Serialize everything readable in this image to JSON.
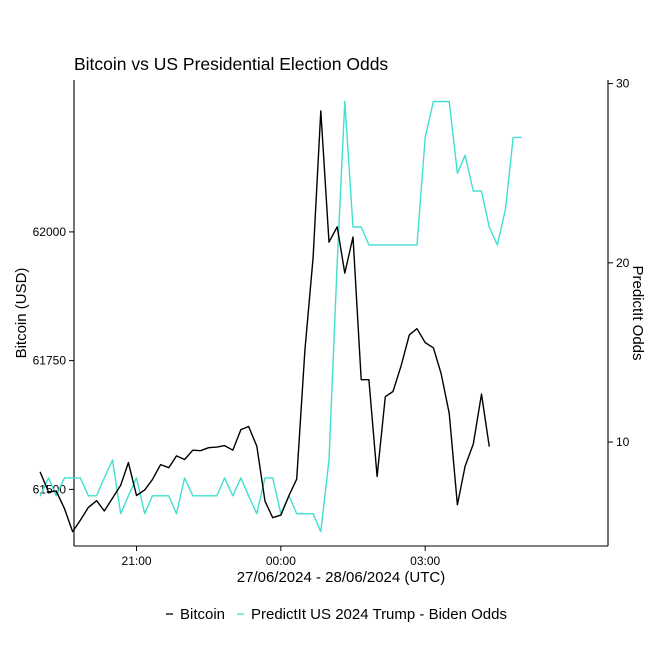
{
  "chart_data": {
    "type": "line",
    "title": "Bitcoin vs US Presidential Election Odds",
    "xlabel": "27/06/2024 - 28/06/2024 (UTC)",
    "ylabel_left": "Bitcoin (USD)",
    "ylabel_right": "PredictIt Odds",
    "x_range_hours": [
      -4.3,
      6.8
    ],
    "x_ticks": [
      {
        "hour": -3,
        "label": "21:00"
      },
      {
        "hour": 0,
        "label": "00:00"
      },
      {
        "hour": 3,
        "label": "03:00"
      }
    ],
    "y_left": {
      "range": [
        61390,
        62295
      ],
      "ticks": [
        61500,
        61750,
        62000
      ]
    },
    "y_right": {
      "range": [
        4.2,
        30.2
      ],
      "ticks": [
        10,
        20,
        30
      ]
    },
    "grid": false,
    "legend_position": "bottom",
    "series": [
      {
        "name": "Bitcoin",
        "axis": "left",
        "color": "#000000",
        "points": [
          [
            -5.0,
            61533
          ],
          [
            -4.83,
            61495
          ],
          [
            -4.67,
            61497
          ],
          [
            -4.5,
            61463
          ],
          [
            -4.33,
            61418
          ],
          [
            -4.17,
            61440
          ],
          [
            -4.0,
            61465
          ],
          [
            -3.83,
            61478
          ],
          [
            -3.67,
            61458
          ],
          [
            -3.5,
            61483
          ],
          [
            -3.33,
            61508
          ],
          [
            -3.17,
            61552
          ],
          [
            -3.0,
            61488
          ],
          [
            -2.83,
            61499
          ],
          [
            -2.67,
            61519
          ],
          [
            -2.5,
            61548
          ],
          [
            -2.33,
            61542
          ],
          [
            -2.17,
            61565
          ],
          [
            -2.0,
            61558
          ],
          [
            -1.83,
            61576
          ],
          [
            -1.67,
            61575
          ],
          [
            -1.5,
            61581
          ],
          [
            -1.33,
            61582
          ],
          [
            -1.17,
            61585
          ],
          [
            -1.0,
            61576
          ],
          [
            -0.83,
            61616
          ],
          [
            -0.67,
            61622
          ],
          [
            -0.5,
            61584
          ],
          [
            -0.33,
            61477
          ],
          [
            -0.17,
            61445
          ],
          [
            0.0,
            61450
          ],
          [
            0.17,
            61488
          ],
          [
            0.33,
            61520
          ],
          [
            0.5,
            61770
          ],
          [
            0.67,
            61950
          ],
          [
            0.83,
            62235
          ],
          [
            1.0,
            61980
          ],
          [
            1.17,
            62010
          ],
          [
            1.33,
            61920
          ],
          [
            1.5,
            61990
          ],
          [
            1.67,
            61713
          ],
          [
            1.83,
            61713
          ],
          [
            2.0,
            61525
          ],
          [
            2.17,
            61680
          ],
          [
            2.33,
            61690
          ],
          [
            2.5,
            61740
          ],
          [
            2.67,
            61800
          ],
          [
            2.83,
            61812
          ],
          [
            3.0,
            61785
          ],
          [
            3.17,
            61775
          ],
          [
            3.33,
            61725
          ],
          [
            3.5,
            61648
          ],
          [
            3.67,
            61470
          ],
          [
            3.83,
            61545
          ],
          [
            4.0,
            61588
          ],
          [
            4.17,
            61685
          ],
          [
            4.33,
            61584
          ]
        ]
      },
      {
        "name": "PredictIt US 2024 Trump - Biden Odds",
        "axis": "right",
        "color": "#40E0D0",
        "points": [
          [
            -5.0,
            7
          ],
          [
            -4.83,
            8
          ],
          [
            -4.67,
            7
          ],
          [
            -4.5,
            8
          ],
          [
            -4.33,
            8
          ],
          [
            -4.17,
            8
          ],
          [
            -4.0,
            7
          ],
          [
            -3.83,
            7
          ],
          [
            -3.67,
            8
          ],
          [
            -3.5,
            9
          ],
          [
            -3.33,
            6
          ],
          [
            -3.17,
            7
          ],
          [
            -3.0,
            8
          ],
          [
            -2.83,
            6
          ],
          [
            -2.67,
            7
          ],
          [
            -2.5,
            7
          ],
          [
            -2.33,
            7
          ],
          [
            -2.17,
            6
          ],
          [
            -2.0,
            8
          ],
          [
            -1.83,
            7
          ],
          [
            -1.67,
            7
          ],
          [
            -1.5,
            7
          ],
          [
            -1.33,
            7
          ],
          [
            -1.17,
            8
          ],
          [
            -1.0,
            7
          ],
          [
            -0.83,
            8
          ],
          [
            -0.67,
            7
          ],
          [
            -0.5,
            6
          ],
          [
            -0.33,
            8
          ],
          [
            -0.17,
            8
          ],
          [
            0.0,
            6
          ],
          [
            0.17,
            7
          ],
          [
            0.33,
            6
          ],
          [
            0.5,
            6
          ],
          [
            0.67,
            6
          ],
          [
            0.83,
            5
          ],
          [
            1.0,
            9
          ],
          [
            1.17,
            20
          ],
          [
            1.33,
            29
          ],
          [
            1.5,
            22
          ],
          [
            1.67,
            22
          ],
          [
            1.83,
            21
          ],
          [
            2.0,
            21
          ],
          [
            2.17,
            21
          ],
          [
            2.33,
            21
          ],
          [
            2.5,
            21
          ],
          [
            2.67,
            21
          ],
          [
            2.83,
            21
          ],
          [
            3.0,
            27
          ],
          [
            3.17,
            29
          ],
          [
            3.33,
            29
          ],
          [
            3.5,
            29
          ],
          [
            3.67,
            25
          ],
          [
            3.83,
            26
          ],
          [
            4.0,
            24
          ],
          [
            4.17,
            24
          ],
          [
            4.33,
            22
          ],
          [
            4.5,
            21
          ],
          [
            4.67,
            23
          ],
          [
            4.83,
            27
          ],
          [
            5.0,
            27
          ]
        ]
      }
    ]
  }
}
